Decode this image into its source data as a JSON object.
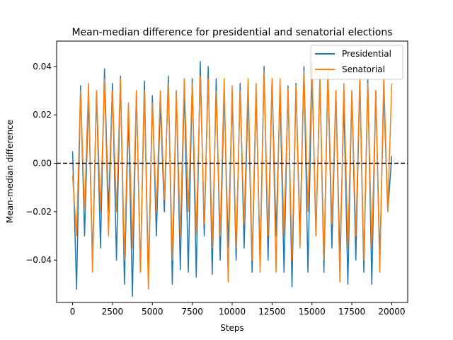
{
  "chart_data": {
    "type": "line",
    "title": "Mean-median difference for presidential and senatorial elections",
    "xlabel": "Steps",
    "ylabel": "Mean-median difference",
    "xlim": [
      -1000,
      21000
    ],
    "ylim": [
      -0.0575,
      0.0505
    ],
    "x_ticks": [
      0,
      2500,
      5000,
      7500,
      10000,
      12500,
      15000,
      17500,
      20000
    ],
    "x_tick_labels": [
      "0",
      "2500",
      "5000",
      "7500",
      "10000",
      "12500",
      "15000",
      "17500",
      "20000"
    ],
    "y_ticks": [
      -0.04,
      -0.02,
      0.0,
      0.02,
      0.04
    ],
    "y_tick_labels": [
      "−0.04",
      "−0.02",
      "0.00",
      "0.02",
      "0.04"
    ],
    "legend_position": "upper right",
    "grid": false,
    "reference_line": {
      "y": 0.0,
      "style": "dashed",
      "color": "#000000"
    },
    "series": [
      {
        "name": "Presidential",
        "color": "#1f77b4",
        "x": [
          0,
          250,
          500,
          750,
          1000,
          1250,
          1500,
          1750,
          2000,
          2250,
          2500,
          2750,
          3000,
          3250,
          3500,
          3750,
          4000,
          4250,
          4500,
          4750,
          5000,
          5250,
          5500,
          5750,
          6000,
          6250,
          6500,
          6750,
          7000,
          7250,
          7500,
          7750,
          8000,
          8250,
          8500,
          8750,
          9000,
          9250,
          9500,
          9750,
          10000,
          10250,
          10500,
          10750,
          11000,
          11250,
          11500,
          11750,
          12000,
          12250,
          12500,
          12750,
          13000,
          13250,
          13500,
          13750,
          14000,
          14250,
          14500,
          14750,
          15000,
          15250,
          15500,
          15750,
          16000,
          16250,
          16500,
          16750,
          17000,
          17250,
          17500,
          17750,
          18000,
          18250,
          18500,
          18750,
          19000,
          19250,
          19500,
          19750,
          20000
        ],
        "y": [
          0.005,
          -0.052,
          0.032,
          -0.03,
          0.028,
          -0.04,
          0.03,
          -0.035,
          0.039,
          -0.02,
          0.033,
          -0.04,
          0.036,
          -0.05,
          0.02,
          -0.055,
          0.03,
          -0.045,
          0.034,
          -0.048,
          0.028,
          -0.03,
          0.025,
          -0.02,
          0.036,
          -0.05,
          0.03,
          -0.044,
          0.032,
          -0.045,
          0.035,
          -0.047,
          0.042,
          -0.03,
          0.04,
          -0.046,
          0.035,
          -0.04,
          0.03,
          -0.035,
          0.028,
          -0.04,
          0.033,
          -0.035,
          0.03,
          -0.045,
          0.03,
          -0.04,
          0.04,
          -0.04,
          0.035,
          -0.03,
          0.03,
          -0.045,
          0.032,
          -0.051,
          0.033,
          -0.03,
          0.04,
          -0.045,
          0.038,
          -0.03,
          0.036,
          -0.045,
          0.039,
          -0.035,
          0.03,
          -0.04,
          0.025,
          -0.05,
          0.03,
          -0.04,
          0.035,
          -0.045,
          0.035,
          -0.05,
          0.03,
          -0.04,
          0.03,
          -0.02,
          0.003
        ]
      },
      {
        "name": "Senatorial",
        "color": "#ff7f0e",
        "x": [
          0,
          250,
          500,
          750,
          1000,
          1250,
          1500,
          1750,
          2000,
          2250,
          2500,
          2750,
          3000,
          3250,
          3500,
          3750,
          4000,
          4250,
          4500,
          4750,
          5000,
          5250,
          5500,
          5750,
          6000,
          6250,
          6500,
          6750,
          7000,
          7250,
          7500,
          7750,
          8000,
          8250,
          8500,
          8750,
          9000,
          9250,
          9500,
          9750,
          10000,
          10250,
          10500,
          10750,
          11000,
          11250,
          11500,
          11750,
          12000,
          12250,
          12500,
          12750,
          13000,
          13250,
          13500,
          13750,
          14000,
          14250,
          14500,
          14750,
          15000,
          15250,
          15500,
          15750,
          16000,
          16250,
          16500,
          16750,
          17000,
          17250,
          17500,
          17750,
          18000,
          18250,
          18500,
          18750,
          19000,
          19250,
          19500,
          19750,
          20000
        ],
        "y": [
          -0.005,
          -0.03,
          0.03,
          -0.02,
          0.033,
          -0.045,
          0.03,
          -0.02,
          0.035,
          -0.03,
          0.03,
          -0.02,
          0.035,
          -0.04,
          0.025,
          -0.035,
          0.03,
          -0.045,
          0.03,
          -0.052,
          0.025,
          -0.02,
          0.03,
          -0.015,
          0.033,
          -0.04,
          0.03,
          -0.03,
          0.035,
          -0.02,
          0.033,
          -0.03,
          0.036,
          -0.025,
          0.035,
          -0.035,
          0.03,
          -0.03,
          0.035,
          -0.049,
          0.032,
          -0.035,
          0.03,
          -0.025,
          0.035,
          -0.04,
          0.033,
          -0.045,
          0.038,
          -0.03,
          0.035,
          -0.045,
          0.035,
          -0.03,
          0.031,
          -0.04,
          0.032,
          -0.035,
          0.038,
          -0.02,
          0.042,
          -0.03,
          0.035,
          -0.04,
          0.038,
          -0.025,
          0.03,
          -0.049,
          0.033,
          -0.035,
          0.03,
          -0.03,
          0.036,
          -0.04,
          0.033,
          -0.035,
          0.03,
          -0.045,
          0.036,
          -0.02,
          0.033
        ]
      }
    ]
  }
}
